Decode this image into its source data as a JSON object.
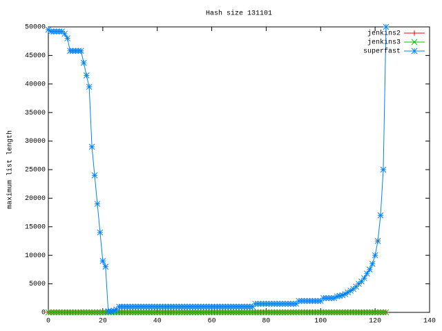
{
  "chart_data": {
    "type": "line",
    "title": "Hash size 131101",
    "ylabel": "maximum list length",
    "x": [
      0,
      1,
      2,
      3,
      4,
      5,
      6,
      7,
      8,
      9,
      10,
      11,
      12,
      13,
      14,
      15,
      16,
      17,
      18,
      19,
      20,
      21,
      22,
      23,
      24,
      25,
      26,
      27,
      28,
      29,
      30,
      31,
      32,
      33,
      34,
      35,
      36,
      37,
      38,
      39,
      40,
      41,
      42,
      43,
      44,
      45,
      46,
      47,
      48,
      49,
      50,
      51,
      52,
      53,
      54,
      55,
      56,
      57,
      58,
      59,
      60,
      61,
      62,
      63,
      64,
      65,
      66,
      67,
      68,
      69,
      70,
      71,
      72,
      73,
      74,
      75,
      76,
      77,
      78,
      79,
      80,
      81,
      82,
      83,
      84,
      85,
      86,
      87,
      88,
      89,
      90,
      91,
      92,
      93,
      94,
      95,
      96,
      97,
      98,
      99,
      100,
      101,
      102,
      103,
      104,
      105,
      106,
      107,
      108,
      109,
      110,
      111,
      112,
      113,
      114,
      115,
      116,
      117,
      118,
      119,
      120,
      121,
      122,
      123,
      124
    ],
    "series": [
      {
        "name": "jenkins2",
        "color": "#ff0000",
        "marker": "plus",
        "values": [
          20,
          20,
          20,
          20,
          20,
          20,
          20,
          20,
          20,
          20,
          20,
          20,
          20,
          20,
          20,
          20,
          20,
          20,
          20,
          20,
          20,
          20,
          20,
          20,
          20,
          20,
          20,
          20,
          20,
          20,
          20,
          20,
          20,
          20,
          20,
          20,
          20,
          20,
          20,
          20,
          20,
          20,
          20,
          20,
          20,
          20,
          20,
          20,
          20,
          20,
          20,
          20,
          20,
          20,
          20,
          20,
          20,
          20,
          20,
          20,
          20,
          20,
          20,
          20,
          20,
          20,
          20,
          20,
          20,
          20,
          20,
          20,
          20,
          20,
          20,
          20,
          20,
          20,
          20,
          20,
          20,
          20,
          20,
          20,
          20,
          20,
          20,
          20,
          20,
          20,
          20,
          20,
          20,
          20,
          20,
          20,
          20,
          20,
          20,
          20,
          20,
          20,
          20,
          20,
          20,
          20,
          20,
          20,
          20,
          20,
          20,
          20,
          20,
          20,
          20,
          20,
          20,
          20,
          20,
          20,
          20,
          20,
          20,
          20,
          20
        ]
      },
      {
        "name": "jenkins3",
        "color": "#00c000",
        "marker": "cross",
        "values": [
          20,
          20,
          20,
          20,
          20,
          20,
          20,
          20,
          20,
          20,
          20,
          20,
          20,
          20,
          20,
          20,
          20,
          20,
          20,
          20,
          20,
          20,
          20,
          20,
          20,
          20,
          20,
          20,
          20,
          20,
          20,
          20,
          20,
          20,
          20,
          20,
          20,
          20,
          20,
          20,
          20,
          20,
          20,
          20,
          20,
          20,
          20,
          20,
          20,
          20,
          20,
          20,
          20,
          20,
          20,
          20,
          20,
          20,
          20,
          20,
          20,
          20,
          20,
          20,
          20,
          20,
          20,
          20,
          20,
          20,
          20,
          20,
          20,
          20,
          20,
          20,
          20,
          20,
          20,
          20,
          20,
          20,
          20,
          20,
          20,
          20,
          20,
          20,
          20,
          20,
          20,
          20,
          20,
          20,
          20,
          20,
          20,
          20,
          20,
          20,
          20,
          20,
          20,
          20,
          20,
          20,
          20,
          20,
          20,
          20,
          20,
          20,
          20,
          20,
          20,
          20,
          20,
          20,
          20,
          20,
          20,
          20,
          20,
          20,
          20
        ]
      },
      {
        "name": "superfast",
        "color": "#0080ff",
        "marker": "star",
        "values": [
          49500,
          49200,
          49200,
          49200,
          49200,
          49200,
          48800,
          48000,
          45800,
          45800,
          45800,
          45800,
          45800,
          43700,
          41500,
          39500,
          29000,
          24000,
          19000,
          14000,
          9000,
          8000,
          200,
          200,
          300,
          500,
          1000,
          1000,
          1000,
          1000,
          1000,
          1000,
          1000,
          1000,
          1000,
          1000,
          1000,
          1000,
          1000,
          1000,
          1000,
          1000,
          1000,
          1000,
          1000,
          1000,
          1000,
          1000,
          1000,
          1000,
          1000,
          1000,
          1000,
          1000,
          1000,
          1000,
          1000,
          1000,
          1000,
          1000,
          1000,
          1000,
          1000,
          1000,
          1000,
          1000,
          1000,
          1000,
          1000,
          1000,
          1000,
          1000,
          1000,
          1000,
          1000,
          1000,
          1500,
          1500,
          1500,
          1500,
          1500,
          1500,
          1500,
          1500,
          1500,
          1500,
          1500,
          1500,
          1500,
          1500,
          1500,
          1500,
          2000,
          2000,
          2000,
          2000,
          2000,
          2000,
          2000,
          2000,
          2000,
          2500,
          2500,
          2500,
          2500,
          2500,
          2800,
          2900,
          3000,
          3200,
          3500,
          3800,
          4100,
          4500,
          5000,
          5400,
          6000,
          6800,
          7500,
          8500,
          10000,
          12500,
          17000,
          25000,
          50000
        ]
      }
    ],
    "xlim": [
      0,
      140
    ],
    "xticks": [
      0,
      20,
      40,
      60,
      80,
      100,
      120,
      140
    ],
    "ylim": [
      0,
      50000
    ],
    "yticks": [
      0,
      5000,
      10000,
      15000,
      20000,
      25000,
      30000,
      35000,
      40000,
      45000,
      50000
    ],
    "legend": "upper right"
  }
}
